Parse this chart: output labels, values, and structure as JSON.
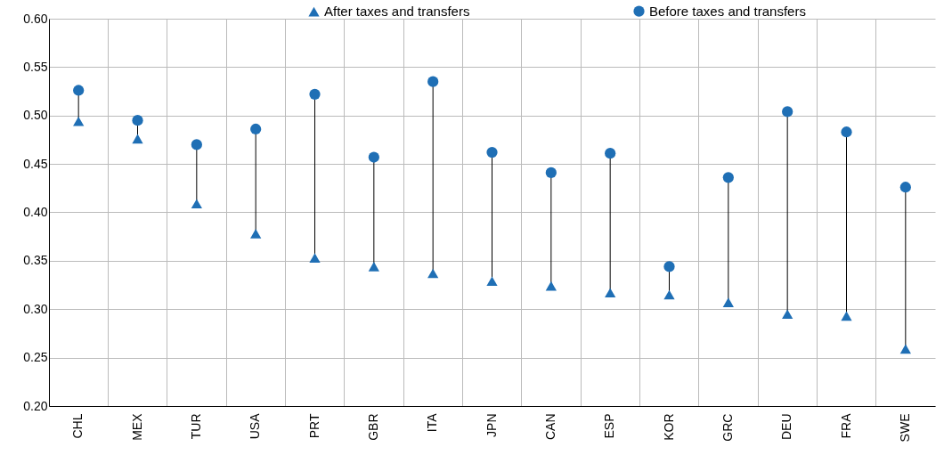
{
  "chart_data": {
    "type": "scatter",
    "categories": [
      "CHL",
      "MEX",
      "TUR",
      "USA",
      "PRT",
      "GBR",
      "ITA",
      "JPN",
      "CAN",
      "ESP",
      "KOR",
      "GRC",
      "DEU",
      "FRA",
      "SWE"
    ],
    "series": [
      {
        "name": "After taxes and transfers",
        "color": "#1f6fb5",
        "marker": "triangle",
        "values": [
          0.494,
          0.476,
          0.409,
          0.378,
          0.353,
          0.344,
          0.337,
          0.329,
          0.324,
          0.317,
          0.315,
          0.307,
          0.295,
          0.293,
          0.259
        ]
      },
      {
        "name": "Before taxes and transfers",
        "color": "#1f6fb5",
        "marker": "circle",
        "values": [
          0.526,
          0.495,
          0.47,
          0.486,
          0.522,
          0.457,
          0.535,
          0.462,
          0.441,
          0.461,
          0.344,
          0.436,
          0.504,
          0.483,
          0.426
        ]
      }
    ],
    "ylim": [
      0.2,
      0.6
    ],
    "yticks": [
      {
        "value": 0.2,
        "label": "0.20"
      },
      0.25,
      {
        "value": 0.3,
        "label": "0.30"
      },
      0.35,
      {
        "value": 0.4,
        "label": "0.40"
      },
      0.45,
      {
        "value": 0.5,
        "label": "0.50"
      },
      0.55,
      {
        "value": 0.6,
        "label": "0.60"
      }
    ],
    "grid": true,
    "legend": "top"
  }
}
